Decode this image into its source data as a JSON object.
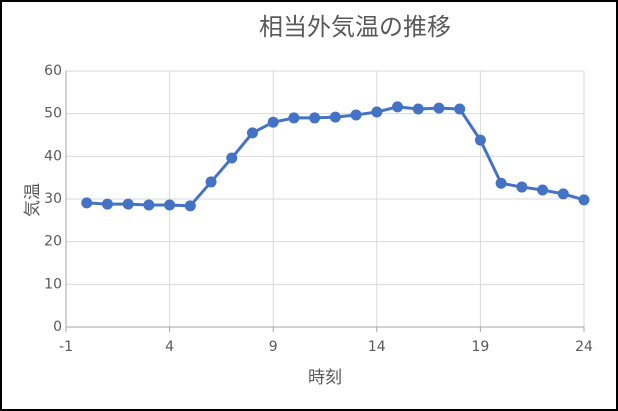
{
  "chart_data": {
    "type": "line",
    "title": "相当外気温の推移",
    "x_label": "時刻",
    "y_label": "気温",
    "x": [
      0,
      1,
      2,
      3,
      4,
      5,
      6,
      7,
      8,
      9,
      10,
      11,
      12,
      13,
      14,
      15,
      16,
      17,
      18,
      19,
      20,
      21,
      22,
      23,
      24
    ],
    "series": [
      {
        "color": "#4472c4",
        "values": [
          29.1,
          28.8,
          28.8,
          28.6,
          28.6,
          28.4,
          34.0,
          39.6,
          45.5,
          48.0,
          49.0,
          49.0,
          49.2,
          49.7,
          50.4,
          51.6,
          51.1,
          51.3,
          51.1,
          43.8,
          33.7,
          32.8,
          32.1,
          31.2,
          29.8
        ]
      }
    ],
    "xlim": [
      -1,
      24
    ],
    "xticks": [
      -1,
      4,
      9,
      14,
      19,
      24
    ],
    "ylim": [
      0,
      60
    ],
    "yticks": [
      0,
      10,
      20,
      30,
      40,
      50,
      60
    ],
    "grid": true,
    "markers": true
  }
}
